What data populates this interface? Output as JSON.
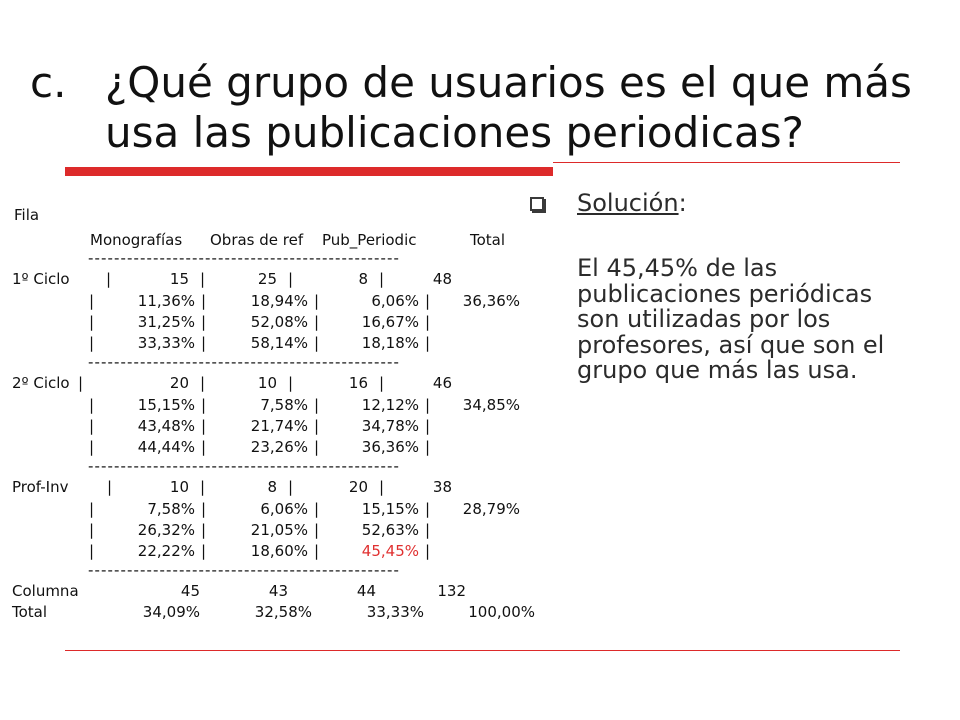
{
  "slide": {
    "title_marker": "c.",
    "title": "¿Qué grupo de usuarios es el que más usa las publicaciones periodicas?"
  },
  "colors": {
    "accent": "#dd2a2a",
    "highlight": "#e03030",
    "text": "#111111"
  },
  "table": {
    "row_header": "Fila",
    "column_headers": [
      "Monografías",
      "Obras de ref",
      "Pub_Periodic",
      "Total"
    ],
    "separator": "|",
    "rule": "------------------------------------------------",
    "groups": [
      {
        "label": "1º Ciclo",
        "lines": [
          [
            "15",
            "25",
            "8",
            "48"
          ],
          [
            "11,36%",
            "18,94%",
            "6,06%",
            "36,36%"
          ],
          [
            "31,25%",
            "52,08%",
            "16,67%"
          ],
          [
            "33,33%",
            "58,14%",
            "18,18%"
          ]
        ]
      },
      {
        "label": "2º Ciclo",
        "lines": [
          [
            "20",
            "10",
            "16",
            "46"
          ],
          [
            "15,15%",
            "7,58%",
            "12,12%",
            "34,85%"
          ],
          [
            "43,48%",
            "21,74%",
            "34,78%"
          ],
          [
            "44,44%",
            "23,26%",
            "36,36%"
          ]
        ]
      },
      {
        "label": "Prof-Inv",
        "lines": [
          [
            "10",
            "8",
            "20",
            "38"
          ],
          [
            "7,58%",
            "6,06%",
            "15,15%",
            "28,79%"
          ],
          [
            "26,32%",
            "21,05%",
            "52,63%"
          ],
          [
            "22,22%",
            "18,60%",
            "45,45%"
          ]
        ]
      }
    ],
    "column_totals": {
      "label": "Columna",
      "values": [
        "45",
        "43",
        "44",
        "132"
      ]
    },
    "total_pct": {
      "label": "Total",
      "values": [
        "34,09%",
        "32,58%",
        "33,33%",
        "100,00%"
      ]
    },
    "highlight": {
      "group": 2,
      "line": 3,
      "column": 2
    }
  },
  "solution": {
    "bullet_icon": "hollow-square-bullet-icon",
    "heading": "Solución",
    "heading_suffix": ":",
    "text": "El 45,45% de las publicaciones periódicas son utilizadas por los profesores, así que son el grupo que más las usa."
  }
}
